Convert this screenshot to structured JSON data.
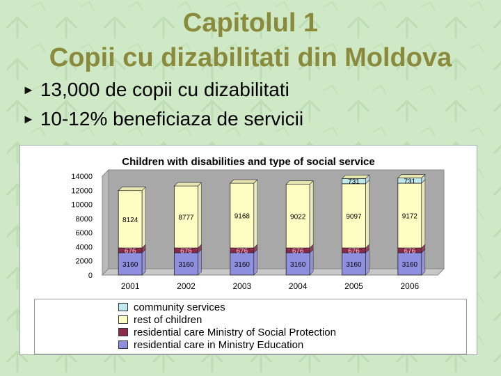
{
  "slide": {
    "title_line1": "Capitolul 1",
    "title_line2": "Copii cu dizabilitati din Moldova",
    "bullets": [
      "13,000 de copii cu dizabilitati",
      "10-12% beneficiaza de servicii"
    ]
  },
  "colors": {
    "background": "#cfe8c6",
    "title": "#8a8a3c",
    "community_services": "#bfe9ee",
    "rest_of_children": "#fffcc4",
    "residential_social": "#8b2a4a",
    "residential_education": "#8f8fe0"
  },
  "chart_data": {
    "type": "bar",
    "stacked": true,
    "title": "Children with disabilities and type of social service",
    "categories": [
      "2001",
      "2002",
      "2003",
      "2004",
      "2005",
      "2006"
    ],
    "ylim": [
      0,
      14000
    ],
    "yticks": [
      0,
      2000,
      4000,
      6000,
      8000,
      10000,
      12000,
      14000
    ],
    "series": [
      {
        "name": "residential care in Ministry Education",
        "values": [
          3160,
          3160,
          3160,
          3160,
          3160,
          3160
        ]
      },
      {
        "name": "residential care Ministry of Social Protection",
        "values": [
          676,
          676,
          676,
          676,
          676,
          676
        ]
      },
      {
        "name": "rest of children",
        "values": [
          8124,
          8777,
          9168,
          9022,
          9097,
          9172
        ]
      },
      {
        "name": "community services",
        "values": [
          0,
          0,
          0,
          0,
          731,
          731
        ]
      }
    ],
    "value_labels": {
      "residential care in Ministry Education": [
        "3160",
        "3160",
        "3160",
        "3160",
        "3160",
        "3160"
      ],
      "residential care Ministry of Social Protection": [
        "676",
        "676",
        "676",
        "676",
        "676",
        "676"
      ],
      "rest of children": [
        "8124",
        "8777",
        "9168",
        "9022",
        "9097",
        "9172"
      ],
      "community services": [
        "",
        "",
        "",
        "",
        "731",
        "731"
      ]
    },
    "legend": {
      "placement": "bottom",
      "order": [
        "community services",
        "rest of children",
        "residential care Ministry of Social Protection",
        "residential care in Ministry Education"
      ]
    },
    "grid": false
  }
}
